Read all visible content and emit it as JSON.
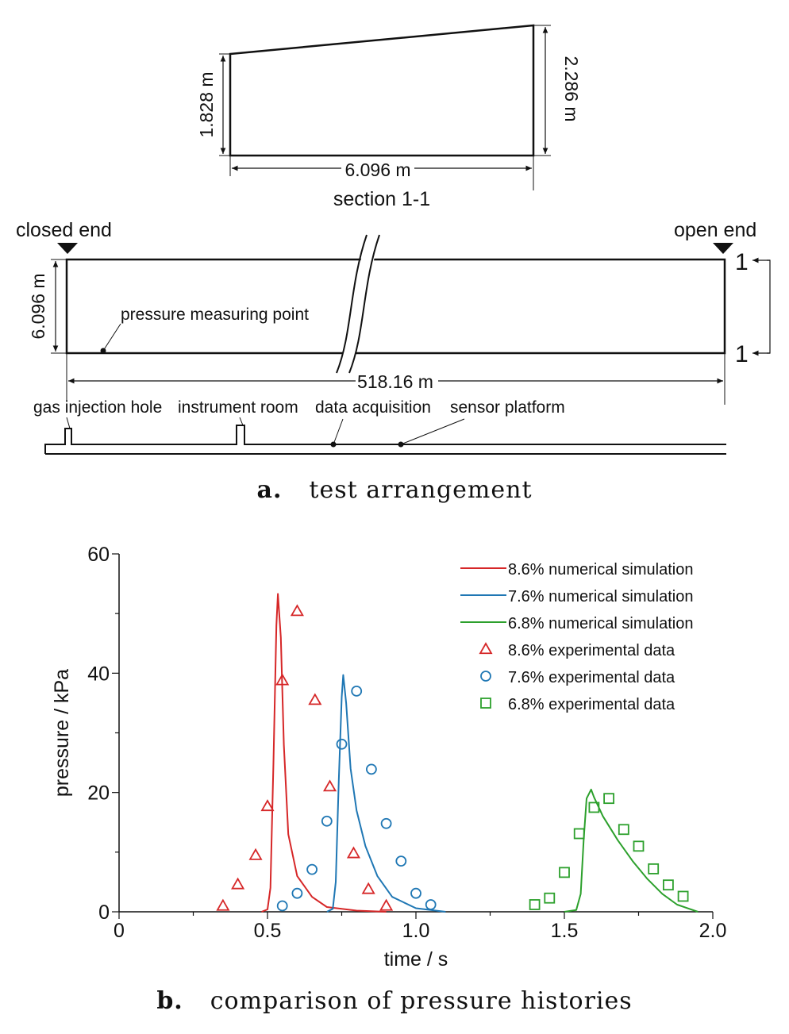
{
  "panel_a": {
    "section": {
      "left_height": "1.828 m",
      "right_height": "2.286 m",
      "width": "6.096 m",
      "title": "section 1-1"
    },
    "plan": {
      "closed_end": "closed end",
      "open_end": "open end",
      "height": "6.096 m",
      "length": "518.16 m",
      "point_label": "pressure measuring point",
      "marker_top": "1",
      "marker_bottom": "1"
    },
    "ground": {
      "gas_injection": "gas injection hole",
      "instrument_room": "instrument room",
      "data_acquisition": "data acquisition",
      "sensor_platform": "sensor platform"
    },
    "caption_label": "a.",
    "caption_text": "test arrangement"
  },
  "panel_b": {
    "caption_label": "b.",
    "caption_text": "comparison of pressure histories"
  },
  "chart_data": {
    "type": "line",
    "xlabel": "time / s",
    "ylabel": "pressure / kPa",
    "xlim": [
      0,
      2.0
    ],
    "ylim": [
      0,
      60
    ],
    "x_ticks": [
      "0",
      "0.5",
      "1.0",
      "1.5",
      "2.0"
    ],
    "y_ticks": [
      "0",
      "20",
      "40",
      "60"
    ],
    "legend_position": "top-right",
    "grid": false,
    "series": [
      {
        "name": "8.6% numerical simulation",
        "kind": "line",
        "color": "#d62728",
        "points": [
          [
            0.48,
            0
          ],
          [
            0.5,
            0.4
          ],
          [
            0.51,
            4
          ],
          [
            0.52,
            25
          ],
          [
            0.53,
            48
          ],
          [
            0.535,
            53.3
          ],
          [
            0.545,
            46
          ],
          [
            0.555,
            28
          ],
          [
            0.57,
            13
          ],
          [
            0.6,
            6
          ],
          [
            0.65,
            2.5
          ],
          [
            0.7,
            0.8
          ],
          [
            0.8,
            0.2
          ],
          [
            0.9,
            0
          ]
        ]
      },
      {
        "name": "7.6% numerical simulation",
        "kind": "line",
        "color": "#1f77b4",
        "points": [
          [
            0.7,
            0
          ],
          [
            0.72,
            0.5
          ],
          [
            0.73,
            5
          ],
          [
            0.74,
            22
          ],
          [
            0.75,
            36
          ],
          [
            0.755,
            39.7
          ],
          [
            0.765,
            35
          ],
          [
            0.78,
            24
          ],
          [
            0.8,
            17
          ],
          [
            0.83,
            11
          ],
          [
            0.87,
            6
          ],
          [
            0.92,
            2.5
          ],
          [
            1.0,
            0.6
          ],
          [
            1.1,
            0
          ]
        ]
      },
      {
        "name": "6.8% numerical simulation",
        "kind": "line",
        "color": "#2ca02c",
        "points": [
          [
            1.5,
            0
          ],
          [
            1.54,
            0.3
          ],
          [
            1.555,
            3
          ],
          [
            1.565,
            12
          ],
          [
            1.575,
            19
          ],
          [
            1.59,
            20.5
          ],
          [
            1.6,
            19.2
          ],
          [
            1.63,
            16
          ],
          [
            1.68,
            12
          ],
          [
            1.73,
            8.5
          ],
          [
            1.78,
            5.5
          ],
          [
            1.83,
            3
          ],
          [
            1.88,
            1.2
          ],
          [
            1.95,
            0
          ]
        ]
      },
      {
        "name": "8.6% experimental data",
        "kind": "marker",
        "marker": "triangle",
        "color": "#d62728",
        "points": [
          [
            0.35,
            1.0
          ],
          [
            0.4,
            4.6
          ],
          [
            0.46,
            9.5
          ],
          [
            0.5,
            17.7
          ],
          [
            0.55,
            38.8
          ],
          [
            0.6,
            50.4
          ],
          [
            0.66,
            35.5
          ],
          [
            0.71,
            21.0
          ],
          [
            0.79,
            9.8
          ],
          [
            0.84,
            3.8
          ],
          [
            0.9,
            1.0
          ]
        ]
      },
      {
        "name": "7.6% experimental data",
        "kind": "marker",
        "marker": "circle",
        "color": "#1f77b4",
        "points": [
          [
            0.55,
            1.0
          ],
          [
            0.6,
            3.1
          ],
          [
            0.65,
            7.1
          ],
          [
            0.7,
            15.2
          ],
          [
            0.75,
            28.1
          ],
          [
            0.8,
            37.0
          ],
          [
            0.85,
            23.9
          ],
          [
            0.9,
            14.8
          ],
          [
            0.95,
            8.5
          ],
          [
            1.0,
            3.1
          ],
          [
            1.05,
            1.2
          ]
        ]
      },
      {
        "name": "6.8% experimental data",
        "kind": "marker",
        "marker": "square",
        "color": "#2ca02c",
        "points": [
          [
            1.4,
            1.2
          ],
          [
            1.45,
            2.3
          ],
          [
            1.5,
            6.6
          ],
          [
            1.55,
            13.1
          ],
          [
            1.6,
            17.5
          ],
          [
            1.65,
            19.0
          ],
          [
            1.7,
            13.8
          ],
          [
            1.75,
            11.0
          ],
          [
            1.8,
            7.2
          ],
          [
            1.85,
            4.5
          ],
          [
            1.9,
            2.6
          ]
        ]
      }
    ]
  }
}
